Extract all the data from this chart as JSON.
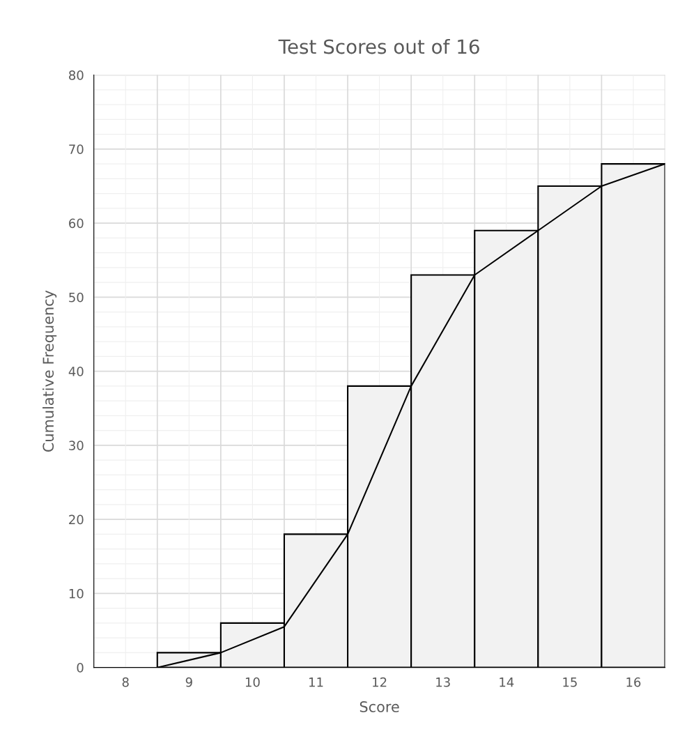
{
  "chart_data": {
    "type": "histogram",
    "title": "Test Scores out of 16",
    "xlabel": "Score",
    "ylabel": "Cumulative Frequency",
    "bins": [
      7.5,
      8.5,
      9.5,
      10.5,
      11.5,
      12.5,
      13.5,
      14.5,
      15.5,
      16.5
    ],
    "values": [
      0,
      2,
      6,
      18,
      38,
      53,
      59,
      65,
      68
    ],
    "color": "#f2f2f2",
    "series": [
      {
        "type": "line",
        "x": [
          8.5,
          9.5,
          10.5,
          11.5,
          12.5,
          13.5,
          14.5,
          15.5,
          16.5
        ],
        "values": [
          0,
          2,
          5.5,
          18,
          38,
          53,
          59,
          65,
          68
        ],
        "color": "#000000"
      }
    ],
    "xlim": [
      7.5,
      16.5
    ],
    "xticks": [
      8,
      9,
      10,
      11,
      12,
      13,
      14,
      15,
      16
    ],
    "ylim": [
      0,
      80
    ],
    "yticks": [
      0,
      10,
      20,
      30,
      40,
      50,
      60,
      70,
      80
    ],
    "grid": true,
    "marker": "none",
    "line_style": "solid"
  }
}
